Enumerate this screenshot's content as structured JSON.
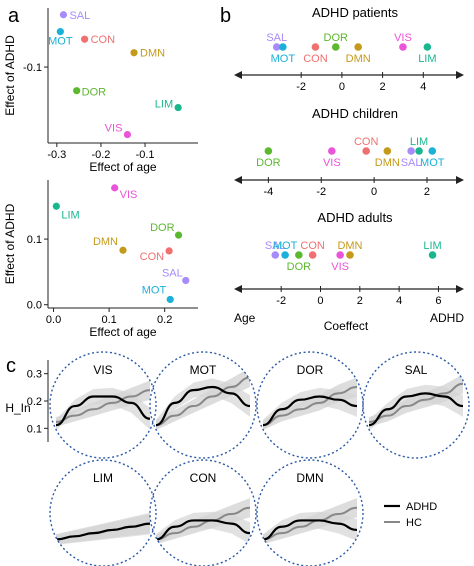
{
  "colors": {
    "SAL": "#a78bfa",
    "MOT": "#1ab0d8",
    "CON": "#f07070",
    "DMN": "#c49a1a",
    "DOR": "#5cb82e",
    "LIM": "#1ab78f",
    "VIS": "#ea54d8",
    "adhd_curve": "#000000",
    "hc_line": "#888888",
    "band": "#d4d4d4",
    "circle": "#2c5aa6"
  },
  "panels": {
    "a": "a",
    "b": "b",
    "c": "c"
  },
  "chart_data": [
    {
      "id": "a-top",
      "type": "scatter",
      "xlabel": "Effect of age",
      "ylabel": "Effect of ADHD",
      "xlim": [
        -0.32,
        0.02
      ],
      "ylim": [
        -0.19,
        -0.03
      ],
      "xticks": [
        {
          "v": -0.3,
          "t": "-0.3"
        },
        {
          "v": -0.2,
          "t": "-0.2"
        },
        {
          "v": -0.1,
          "t": "-0.1"
        }
      ],
      "yticks": [
        {
          "v": -0.1,
          "t": "-0.1"
        }
      ],
      "points": [
        {
          "name": "SAL",
          "x": -0.285,
          "y": -0.038
        },
        {
          "name": "MOT",
          "x": -0.292,
          "y": -0.058
        },
        {
          "name": "CON",
          "x": -0.237,
          "y": -0.067
        },
        {
          "name": "DMN",
          "x": -0.125,
          "y": -0.083
        },
        {
          "name": "DOR",
          "x": -0.255,
          "y": -0.128
        },
        {
          "name": "LIM",
          "x": -0.025,
          "y": -0.148
        },
        {
          "name": "VIS",
          "x": -0.14,
          "y": -0.18
        }
      ]
    },
    {
      "id": "a-bottom",
      "type": "scatter",
      "xlabel": "Effect of age",
      "ylabel": "Effect of ADHD",
      "xlim": [
        -0.01,
        0.26
      ],
      "ylim": [
        -0.005,
        0.19
      ],
      "xticks": [
        {
          "v": 0,
          "t": "0.0"
        },
        {
          "v": 0.1,
          "t": "0.1"
        },
        {
          "v": 0.2,
          "t": "0.2"
        }
      ],
      "yticks": [
        {
          "v": 0,
          "t": "0.0"
        },
        {
          "v": 0.1,
          "t": "0.1"
        }
      ],
      "points": [
        {
          "name": "LIM",
          "x": 0.005,
          "y": 0.15
        },
        {
          "name": "VIS",
          "x": 0.11,
          "y": 0.178
        },
        {
          "name": "DOR",
          "x": 0.225,
          "y": 0.106
        },
        {
          "name": "DMN",
          "x": 0.125,
          "y": 0.083
        },
        {
          "name": "CON",
          "x": 0.208,
          "y": 0.082
        },
        {
          "name": "SAL",
          "x": 0.238,
          "y": 0.037
        },
        {
          "name": "MOT",
          "x": 0.21,
          "y": 0.008
        }
      ]
    },
    {
      "id": "b",
      "type": "scatter",
      "axis_left_label": "Age",
      "axis_center_label": "Coeffect",
      "axis_right_label": "ADHD",
      "rows": [
        {
          "title": "ADHD patients",
          "xlim": [
            -5.3,
            6.0
          ],
          "xticks": [
            {
              "v": -2,
              "t": "-2"
            },
            {
              "v": 0,
              "t": "0"
            },
            {
              "v": 2,
              "t": "2"
            },
            {
              "v": 4,
              "t": "4"
            }
          ],
          "points": [
            {
              "name": "SAL",
              "x": -3.2,
              "level": 1,
              "label_pos": "above"
            },
            {
              "name": "MOT",
              "x": -2.9,
              "level": 1,
              "label_pos": "below"
            },
            {
              "name": "CON",
              "x": -1.3,
              "level": 1,
              "label_pos": "below"
            },
            {
              "name": "DOR",
              "x": -0.3,
              "level": 1,
              "label_pos": "above"
            },
            {
              "name": "DMN",
              "x": 0.8,
              "level": 1,
              "label_pos": "below"
            },
            {
              "name": "VIS",
              "x": 3.0,
              "level": 1,
              "label_pos": "above"
            },
            {
              "name": "LIM",
              "x": 4.2,
              "level": 1,
              "label_pos": "below"
            }
          ]
        },
        {
          "title": "ADHD children",
          "xlim": [
            -5.3,
            3.4
          ],
          "xticks": [
            {
              "v": -4,
              "t": "-4"
            },
            {
              "v": -2,
              "t": "-2"
            },
            {
              "v": 0,
              "t": "0"
            },
            {
              "v": 2,
              "t": "2"
            }
          ],
          "points": [
            {
              "name": "DOR",
              "x": -4.0,
              "level": 1,
              "label_pos": "below"
            },
            {
              "name": "VIS",
              "x": -1.6,
              "level": 1,
              "label_pos": "below"
            },
            {
              "name": "CON",
              "x": -0.3,
              "level": 1,
              "label_pos": "above"
            },
            {
              "name": "DMN",
              "x": 0.5,
              "level": 1,
              "label_pos": "below"
            },
            {
              "name": "SAL",
              "x": 1.4,
              "level": 1,
              "label_pos": "below"
            },
            {
              "name": "LIM",
              "x": 1.7,
              "level": 1,
              "label_pos": "above"
            },
            {
              "name": "MOT",
              "x": 2.2,
              "level": 1,
              "label_pos": "below"
            }
          ]
        },
        {
          "title": "ADHD adults",
          "xlim": [
            -4.4,
            7.3
          ],
          "xticks": [
            {
              "v": -2,
              "t": "-2"
            },
            {
              "v": 0,
              "t": "0"
            },
            {
              "v": 2,
              "t": "2"
            },
            {
              "v": 4,
              "t": "4"
            },
            {
              "v": 6,
              "t": "6"
            }
          ],
          "points": [
            {
              "name": "SAL",
              "x": -2.3,
              "level": 1,
              "label_pos": "above"
            },
            {
              "name": "MOT",
              "x": -1.8,
              "level": 1,
              "label_pos": "above"
            },
            {
              "name": "DOR",
              "x": -1.1,
              "level": 1,
              "label_pos": "below"
            },
            {
              "name": "CON",
              "x": -0.4,
              "level": 1,
              "label_pos": "above"
            },
            {
              "name": "DMN",
              "x": 1.5,
              "level": 1,
              "label_pos": "above"
            },
            {
              "name": "VIS",
              "x": 1.0,
              "level": 1,
              "label_pos": "below"
            },
            {
              "name": "LIM",
              "x": 5.7,
              "level": 1,
              "label_pos": "above"
            }
          ]
        }
      ]
    },
    {
      "id": "c",
      "type": "line",
      "ylabel": "H_In",
      "yticks": [
        {
          "v": 0.1,
          "t": "0.1"
        },
        {
          "v": 0.2,
          "t": "0.2"
        },
        {
          "v": 0.3,
          "t": "0.3"
        }
      ],
      "ylim": [
        0.05,
        0.35
      ],
      "series_names": [
        "ADHD",
        "HC"
      ],
      "networks": [
        {
          "name": "VIS",
          "adhd": [
            0.12,
            0.18,
            0.21,
            0.21,
            0.19,
            0.14
          ],
          "hc": [
            0.13,
            0.15,
            0.17,
            0.19,
            0.21,
            0.23
          ]
        },
        {
          "name": "MOT",
          "adhd": [
            0.12,
            0.19,
            0.23,
            0.24,
            0.22,
            0.18
          ],
          "hc": [
            0.12,
            0.15,
            0.18,
            0.21,
            0.24,
            0.27
          ]
        },
        {
          "name": "DOR",
          "adhd": [
            0.12,
            0.17,
            0.2,
            0.21,
            0.2,
            0.18
          ],
          "hc": [
            0.12,
            0.15,
            0.17,
            0.19,
            0.22,
            0.24
          ]
        },
        {
          "name": "SAL",
          "adhd": [
            0.12,
            0.17,
            0.21,
            0.22,
            0.21,
            0.18
          ],
          "hc": [
            0.13,
            0.15,
            0.18,
            0.2,
            0.22,
            0.25
          ]
        },
        {
          "name": "LIM",
          "adhd": [
            0.1,
            0.11,
            0.12,
            0.13,
            0.14,
            0.15
          ],
          "hc": [
            0.1,
            0.11,
            0.12,
            0.13,
            0.14,
            0.15
          ]
        },
        {
          "name": "CON",
          "adhd": [
            0.1,
            0.14,
            0.16,
            0.16,
            0.15,
            0.12
          ],
          "hc": [
            0.1,
            0.12,
            0.14,
            0.16,
            0.18,
            0.2
          ]
        },
        {
          "name": "DMN",
          "adhd": [
            0.1,
            0.14,
            0.16,
            0.16,
            0.15,
            0.13
          ],
          "hc": [
            0.1,
            0.12,
            0.14,
            0.16,
            0.18,
            0.2
          ]
        }
      ]
    }
  ]
}
